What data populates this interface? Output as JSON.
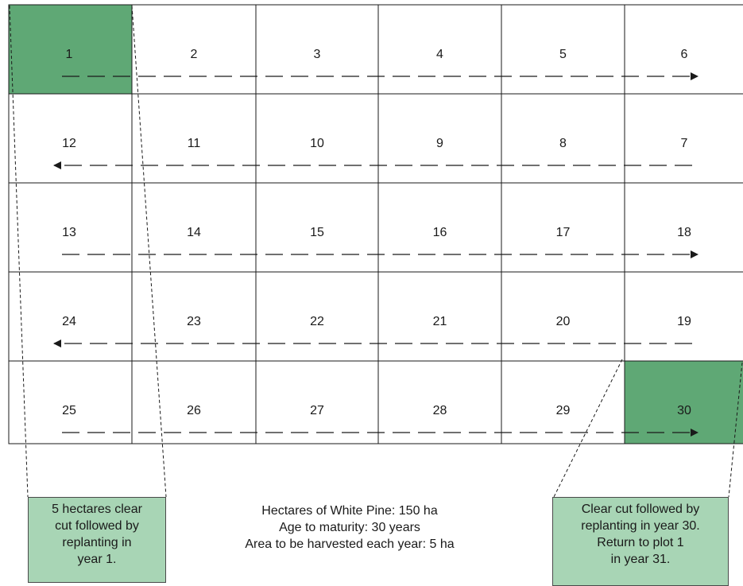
{
  "grid": {
    "rows": [
      {
        "direction": "right",
        "plots": [
          "1",
          "2",
          "3",
          "4",
          "5",
          "6"
        ]
      },
      {
        "direction": "left",
        "plots": [
          "12",
          "11",
          "10",
          "9",
          "8",
          "7"
        ]
      },
      {
        "direction": "right",
        "plots": [
          "13",
          "14",
          "15",
          "16",
          "17",
          "18"
        ]
      },
      {
        "direction": "left",
        "plots": [
          "24",
          "23",
          "22",
          "21",
          "20",
          "19"
        ]
      },
      {
        "direction": "right",
        "plots": [
          "25",
          "26",
          "27",
          "28",
          "29",
          "30"
        ]
      }
    ],
    "highlighted_plots": [
      "1",
      "30"
    ],
    "highlight_color": "#5fa875",
    "line_color": "#1a1a1a"
  },
  "callouts": {
    "left": {
      "lines": [
        "5 hectares clear",
        "cut followed by",
        "replanting in",
        "year 1."
      ],
      "fill": "#a8d5b5"
    },
    "right": {
      "lines": [
        "Clear cut followed by",
        "replanting in year 30.",
        "Return to plot 1",
        "in year 31."
      ],
      "fill": "#a8d5b5"
    }
  },
  "info": {
    "lines": [
      "Hectares of White Pine: 150 ha",
      "Age to maturity: 30 years",
      "Area to be harvested each year: 5 ha"
    ]
  }
}
